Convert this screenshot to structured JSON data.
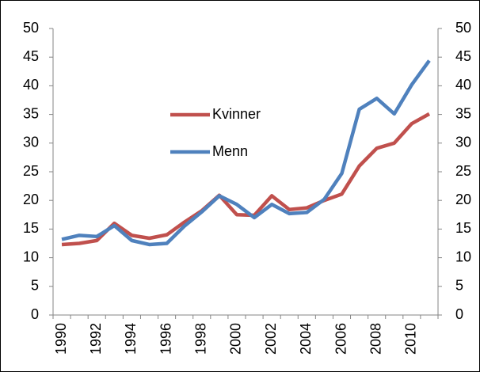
{
  "chart_data": {
    "type": "line",
    "categories": [
      "1990",
      null,
      "1992",
      null,
      "1994",
      null,
      "1996",
      null,
      "1998",
      null,
      "2000",
      null,
      "2002",
      null,
      "2004",
      null,
      "2006",
      null,
      "2008",
      null,
      "2010",
      null
    ],
    "series": [
      {
        "name": "Kvinner",
        "color": "#c0504d",
        "values": [
          12.3,
          12.5,
          13.0,
          16.0,
          13.9,
          13.4,
          14.0,
          16.2,
          18.2,
          20.9,
          17.5,
          17.4,
          20.8,
          18.4,
          18.7,
          20.0,
          21.1,
          26.0,
          29.1,
          30.0,
          33.4,
          35.1
        ]
      },
      {
        "name": "Menn",
        "color": "#4f81bd",
        "values": [
          13.2,
          13.9,
          13.7,
          15.6,
          13.0,
          12.3,
          12.5,
          15.5,
          18.0,
          20.8,
          19.3,
          17.0,
          19.3,
          17.7,
          17.9,
          20.2,
          24.7,
          35.9,
          37.8,
          35.1,
          40.2,
          44.4
        ]
      }
    ],
    "ylim": [
      0,
      50
    ],
    "yticks": [
      0,
      5,
      10,
      15,
      20,
      25,
      30,
      35,
      40,
      45,
      50
    ],
    "y2lim": [
      0,
      50
    ],
    "y2ticks": [
      0,
      5,
      10,
      15,
      20,
      25,
      30,
      35,
      40,
      45,
      50
    ],
    "grid": false
  }
}
